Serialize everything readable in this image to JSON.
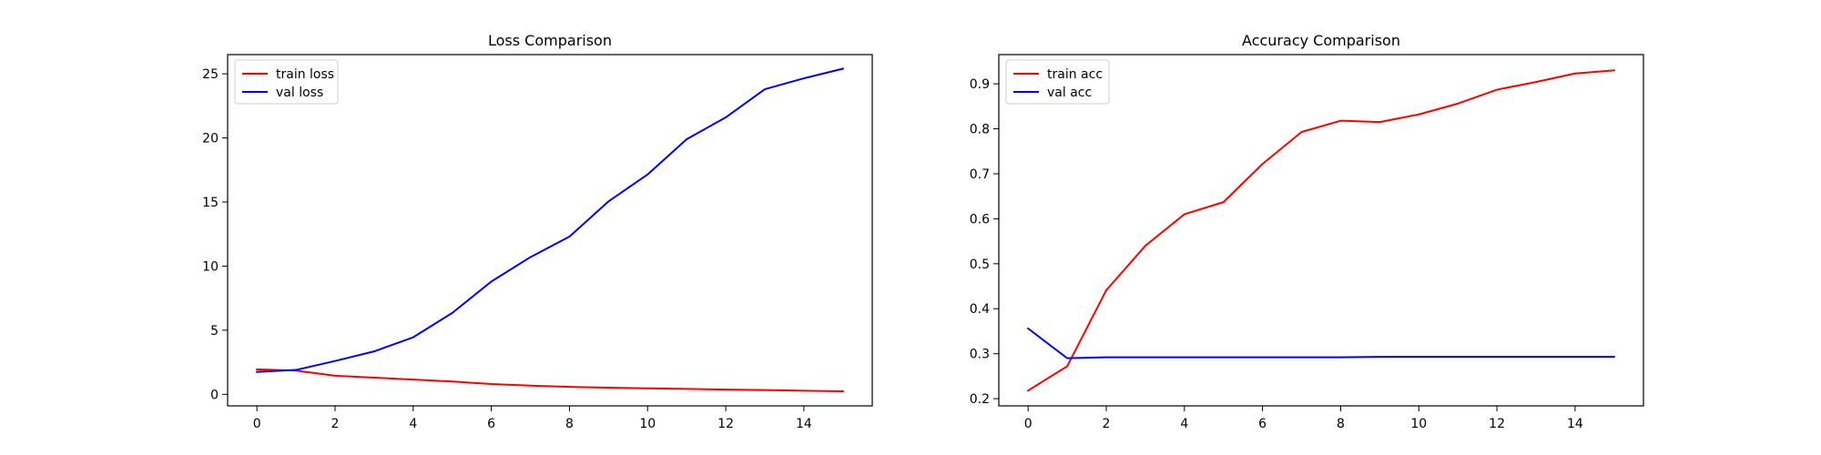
{
  "chart_data": [
    {
      "type": "line",
      "title": "Loss Comparison",
      "xlabel": "",
      "ylabel": "",
      "xlim": [
        -0.75,
        15.75
      ],
      "ylim": [
        -0.9,
        26.5
      ],
      "xticks": [
        0,
        2,
        4,
        6,
        8,
        10,
        12,
        14
      ],
      "yticks": [
        0,
        5,
        10,
        15,
        20,
        25
      ],
      "grid": false,
      "legend_position": "top-left",
      "x": [
        0,
        1,
        2,
        3,
        4,
        5,
        6,
        7,
        8,
        9,
        10,
        11,
        12,
        13,
        14,
        15
      ],
      "series": [
        {
          "name": "train loss",
          "color": "#ff0000",
          "values": [
            1.95,
            1.85,
            1.45,
            1.3,
            1.15,
            1.0,
            0.8,
            0.68,
            0.58,
            0.52,
            0.47,
            0.42,
            0.37,
            0.33,
            0.28,
            0.24
          ]
        },
        {
          "name": "val loss",
          "color": "#0000ff",
          "values": [
            1.75,
            1.9,
            2.6,
            3.35,
            4.45,
            6.35,
            8.8,
            10.7,
            12.3,
            15.05,
            17.15,
            19.9,
            21.6,
            23.8,
            24.65,
            25.4
          ]
        }
      ]
    },
    {
      "type": "line",
      "title": "Accuracy Comparison",
      "xlabel": "",
      "ylabel": "",
      "xlim": [
        -0.75,
        15.75
      ],
      "ylim": [
        0.184,
        0.965
      ],
      "xticks": [
        0,
        2,
        4,
        6,
        8,
        10,
        12,
        14
      ],
      "yticks": [
        0.2,
        0.3,
        0.4,
        0.5,
        0.6,
        0.7,
        0.8,
        0.9
      ],
      "grid": false,
      "legend_position": "top-left",
      "x": [
        0,
        1,
        2,
        3,
        4,
        5,
        6,
        7,
        8,
        9,
        10,
        11,
        12,
        13,
        14,
        15
      ],
      "series": [
        {
          "name": "train acc",
          "color": "#ff0000",
          "values": [
            0.218,
            0.272,
            0.441,
            0.54,
            0.61,
            0.637,
            0.722,
            0.793,
            0.818,
            0.815,
            0.832,
            0.856,
            0.887,
            0.904,
            0.923,
            0.93
          ]
        },
        {
          "name": "val acc",
          "color": "#0000ff",
          "values": [
            0.356,
            0.29,
            0.292,
            0.292,
            0.292,
            0.292,
            0.292,
            0.292,
            0.292,
            0.293,
            0.293,
            0.293,
            0.293,
            0.293,
            0.293,
            0.293
          ]
        }
      ]
    }
  ]
}
